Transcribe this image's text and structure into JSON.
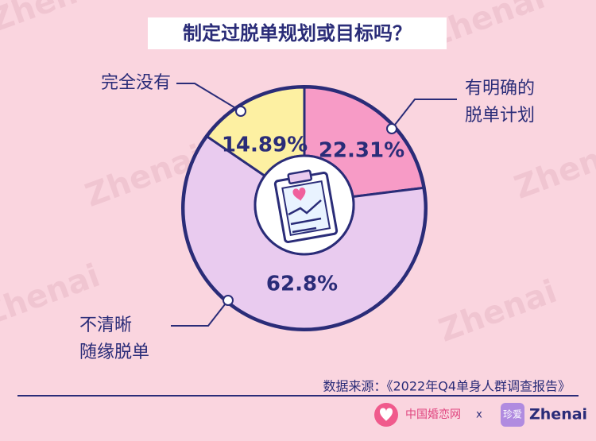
{
  "chart_data": {
    "type": "pie",
    "title": "制定过脱单规划或目标吗？",
    "categories": [
      [
        "有明确的",
        "脱单计划"
      ],
      [
        "不清晰",
        "随缘脱单"
      ],
      [
        "完全没有"
      ]
    ],
    "values": [
      22.31,
      62.8,
      14.89
    ],
    "value_labels": [
      "22.31%",
      "62.8%",
      "14.89%"
    ],
    "colors": [
      "#f79bc6",
      "#e9cbef",
      "#fdf0a2"
    ],
    "source": "数据来源：《2022年Q4单身人群调查报告》",
    "watermark": "Zhenai",
    "footer": {
      "brand1": "中国婚恋网",
      "separator": "x",
      "brand2_icon": "珍爱",
      "brand2": "Zhenai"
    }
  }
}
